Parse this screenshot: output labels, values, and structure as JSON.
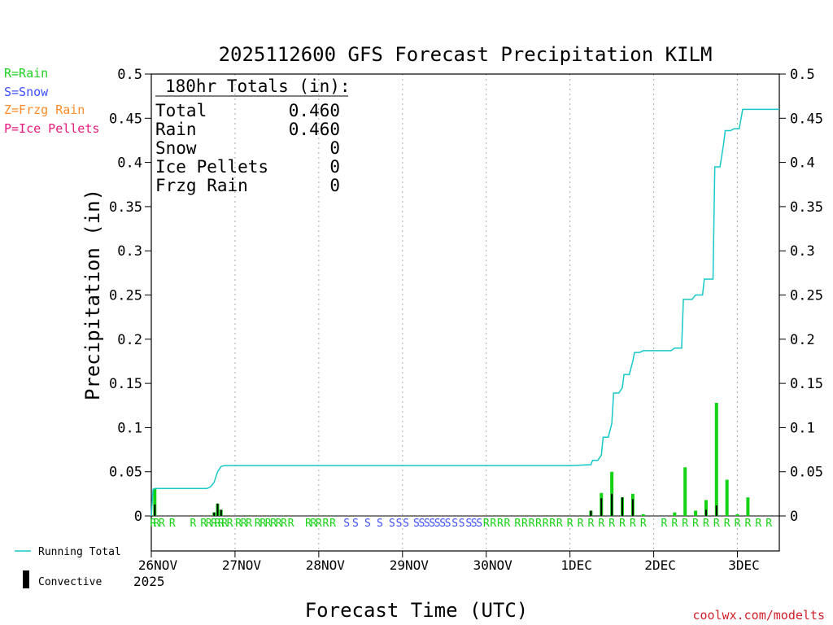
{
  "title": "2025112600 GFS Forecast Precipitation KILM",
  "xlabel": "Forecast Time (UTC)",
  "ylabel": "Precipitation (in)",
  "watermark": "coolwx.com/modelts",
  "legend_types": [
    {
      "label": "R=Rain",
      "color": "#1ed21e"
    },
    {
      "label": "S=Snow",
      "color": "#3c50ff"
    },
    {
      "label": "Z=Frzg Rain",
      "color": "#ff8c28"
    },
    {
      "label": "P=Ice Pellets",
      "color": "#e6197d"
    }
  ],
  "legend_bottom": {
    "running_total": "Running Total",
    "convective": "Convective"
  },
  "totals": {
    "header": "180hr Totals (in):",
    "rows": [
      {
        "label": "Total",
        "value": "0.460"
      },
      {
        "label": "Rain",
        "value": "0.460"
      },
      {
        "label": "Snow",
        "value": "0"
      },
      {
        "label": "Ice Pellets",
        "value": "0"
      },
      {
        "label": "Frzg Rain",
        "value": "0"
      }
    ]
  },
  "colors": {
    "running_total": "#17c8c8",
    "rain": "#14d214",
    "snow": "#3c50ff",
    "convective": "#000000",
    "grid": "#aaaaaa"
  },
  "chart_data": {
    "type": "bar",
    "x_unit": "forecast hour",
    "x_range": [
      0,
      180
    ],
    "ylim": [
      0,
      0.5
    ],
    "yticks": [
      0,
      0.05,
      0.1,
      0.15,
      0.2,
      0.25,
      0.3,
      0.35,
      0.4,
      0.45,
      0.5
    ],
    "ytick_labels": [
      "0",
      "0.05",
      "0.1",
      "0.15",
      "0.2",
      "0.25",
      "0.3",
      "0.35",
      "0.4",
      "0.45",
      "0.5"
    ],
    "xticks": [
      {
        "hour": 0,
        "label": "26NOV",
        "sublabel": "2025"
      },
      {
        "hour": 24,
        "label": "27NOV"
      },
      {
        "hour": 48,
        "label": "28NOV"
      },
      {
        "hour": 72,
        "label": "29NOV"
      },
      {
        "hour": 96,
        "label": "30NOV"
      },
      {
        "hour": 120,
        "label": "1DEC"
      },
      {
        "hour": 144,
        "label": "2DEC"
      },
      {
        "hour": 168,
        "label": "3DEC"
      }
    ],
    "precip_bars": [
      {
        "hour": 1,
        "total": 0.031,
        "convective": 0.013
      },
      {
        "hour": 18,
        "total": 0.004,
        "convective": 0.004
      },
      {
        "hour": 19,
        "total": 0.014,
        "convective": 0.014
      },
      {
        "hour": 20,
        "total": 0.007,
        "convective": 0.007
      },
      {
        "hour": 126,
        "total": 0.006,
        "convective": 0.006
      },
      {
        "hour": 129,
        "total": 0.026,
        "convective": 0.02
      },
      {
        "hour": 132,
        "total": 0.05,
        "convective": 0.025
      },
      {
        "hour": 135,
        "total": 0.021,
        "convective": 0.021
      },
      {
        "hour": 138,
        "total": 0.025,
        "convective": 0.019
      },
      {
        "hour": 141,
        "total": 0.002,
        "convective": 0.0
      },
      {
        "hour": 150,
        "total": 0.004,
        "convective": 0.0
      },
      {
        "hour": 153,
        "total": 0.055,
        "convective": 0.0
      },
      {
        "hour": 156,
        "total": 0.006,
        "convective": 0.0
      },
      {
        "hour": 159,
        "total": 0.018,
        "convective": 0.007
      },
      {
        "hour": 162,
        "total": 0.128,
        "convective": 0.012
      },
      {
        "hour": 165,
        "total": 0.041,
        "convective": 0.0
      },
      {
        "hour": 168,
        "total": 0.002,
        "convective": 0.0
      },
      {
        "hour": 171,
        "total": 0.021,
        "convective": 0.0
      }
    ],
    "running_total": [
      [
        0,
        0.0
      ],
      [
        0.5,
        0.03
      ],
      [
        1,
        0.031
      ],
      [
        16,
        0.031
      ],
      [
        17,
        0.033
      ],
      [
        18,
        0.038
      ],
      [
        19,
        0.05
      ],
      [
        20,
        0.056
      ],
      [
        21,
        0.057
      ],
      [
        120,
        0.057
      ],
      [
        126,
        0.058
      ],
      [
        126.5,
        0.063
      ],
      [
        128,
        0.063
      ],
      [
        129,
        0.069
      ],
      [
        129.5,
        0.089
      ],
      [
        131,
        0.089
      ],
      [
        132,
        0.105
      ],
      [
        132.5,
        0.139
      ],
      [
        134,
        0.139
      ],
      [
        135,
        0.145
      ],
      [
        135.5,
        0.16
      ],
      [
        137,
        0.16
      ],
      [
        138,
        0.175
      ],
      [
        138.5,
        0.185
      ],
      [
        140,
        0.185
      ],
      [
        141,
        0.187
      ],
      [
        149,
        0.187
      ],
      [
        150,
        0.19
      ],
      [
        152,
        0.19
      ],
      [
        152.5,
        0.245
      ],
      [
        155,
        0.245
      ],
      [
        156,
        0.25
      ],
      [
        158,
        0.25
      ],
      [
        158.5,
        0.268
      ],
      [
        161,
        0.268
      ],
      [
        161.5,
        0.395
      ],
      [
        163,
        0.395
      ],
      [
        164,
        0.42
      ],
      [
        164.5,
        0.436
      ],
      [
        166,
        0.436
      ],
      [
        167,
        0.438
      ],
      [
        168.5,
        0.438
      ],
      [
        169.5,
        0.46
      ],
      [
        180,
        0.46
      ]
    ],
    "ptype_labels": [
      {
        "hour": 0.5,
        "type": "R"
      },
      {
        "hour": 1.5,
        "type": "R"
      },
      {
        "hour": 3,
        "type": "R"
      },
      {
        "hour": 6,
        "type": "R"
      },
      {
        "hour": 12,
        "type": "R"
      },
      {
        "hour": 15,
        "type": "R"
      },
      {
        "hour": 16.5,
        "type": "R"
      },
      {
        "hour": 18,
        "type": "R"
      },
      {
        "hour": 19,
        "type": "R"
      },
      {
        "hour": 20,
        "type": "R"
      },
      {
        "hour": 21,
        "type": "R"
      },
      {
        "hour": 22.5,
        "type": "R"
      },
      {
        "hour": 25,
        "type": "R"
      },
      {
        "hour": 26.5,
        "type": "R"
      },
      {
        "hour": 28,
        "type": "R"
      },
      {
        "hour": 30.5,
        "type": "R"
      },
      {
        "hour": 32,
        "type": "R"
      },
      {
        "hour": 33.5,
        "type": "R"
      },
      {
        "hour": 35,
        "type": "R"
      },
      {
        "hour": 36.5,
        "type": "R"
      },
      {
        "hour": 38,
        "type": "R"
      },
      {
        "hour": 40,
        "type": "R"
      },
      {
        "hour": 45,
        "type": "R"
      },
      {
        "hour": 46.5,
        "type": "R"
      },
      {
        "hour": 48,
        "type": "R"
      },
      {
        "hour": 50,
        "type": "R"
      },
      {
        "hour": 52,
        "type": "R"
      },
      {
        "hour": 56,
        "type": "S"
      },
      {
        "hour": 58.5,
        "type": "S"
      },
      {
        "hour": 62,
        "type": "S"
      },
      {
        "hour": 65.5,
        "type": "S"
      },
      {
        "hour": 69,
        "type": "S"
      },
      {
        "hour": 71,
        "type": "S"
      },
      {
        "hour": 73,
        "type": "S"
      },
      {
        "hour": 76,
        "type": "S"
      },
      {
        "hour": 77.5,
        "type": "S"
      },
      {
        "hour": 79,
        "type": "S"
      },
      {
        "hour": 80.5,
        "type": "S"
      },
      {
        "hour": 82,
        "type": "S"
      },
      {
        "hour": 83.5,
        "type": "S"
      },
      {
        "hour": 85,
        "type": "S"
      },
      {
        "hour": 87,
        "type": "S"
      },
      {
        "hour": 89,
        "type": "S"
      },
      {
        "hour": 91,
        "type": "S"
      },
      {
        "hour": 92.5,
        "type": "S"
      },
      {
        "hour": 94,
        "type": "S"
      },
      {
        "hour": 96,
        "type": "R"
      },
      {
        "hour": 98,
        "type": "R"
      },
      {
        "hour": 100,
        "type": "R"
      },
      {
        "hour": 102,
        "type": "R"
      },
      {
        "hour": 105,
        "type": "R"
      },
      {
        "hour": 107,
        "type": "R"
      },
      {
        "hour": 109,
        "type": "R"
      },
      {
        "hour": 111,
        "type": "R"
      },
      {
        "hour": 113,
        "type": "R"
      },
      {
        "hour": 115,
        "type": "R"
      },
      {
        "hour": 117,
        "type": "R"
      },
      {
        "hour": 120,
        "type": "R"
      },
      {
        "hour": 123,
        "type": "R"
      },
      {
        "hour": 126,
        "type": "R"
      },
      {
        "hour": 129,
        "type": "R"
      },
      {
        "hour": 132,
        "type": "R"
      },
      {
        "hour": 135,
        "type": "R"
      },
      {
        "hour": 138,
        "type": "R"
      },
      {
        "hour": 141,
        "type": "R"
      },
      {
        "hour": 147,
        "type": "R"
      },
      {
        "hour": 150,
        "type": "R"
      },
      {
        "hour": 153,
        "type": "R"
      },
      {
        "hour": 156,
        "type": "R"
      },
      {
        "hour": 159,
        "type": "R"
      },
      {
        "hour": 162,
        "type": "R"
      },
      {
        "hour": 165,
        "type": "R"
      },
      {
        "hour": 168,
        "type": "R"
      },
      {
        "hour": 171,
        "type": "R"
      },
      {
        "hour": 174,
        "type": "R"
      },
      {
        "hour": 177,
        "type": "R"
      }
    ]
  }
}
